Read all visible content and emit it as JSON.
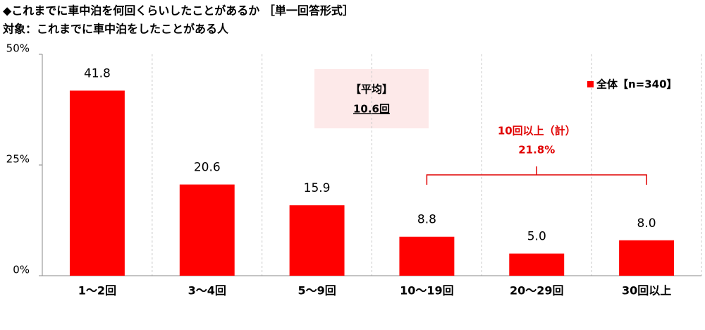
{
  "chart_data": {
    "type": "bar",
    "title": "◆これまでに車中泊を何回くらいしたことがあるか ［単一回答形式］",
    "subtitle": "対象：これまでに車中泊をしたことがある人",
    "categories": [
      "1～2回",
      "3～4回",
      "5～9回",
      "10～19回",
      "20～29回",
      "30回以上"
    ],
    "series": [
      {
        "name": "全体【n=340】",
        "color": "#ff0000",
        "values": [
          41.8,
          20.6,
          15.9,
          8.8,
          5.0,
          8.0
        ],
        "value_labels": [
          "41.8",
          "20.6",
          "15.9",
          "8.8",
          "5.0",
          "8.0"
        ]
      }
    ],
    "ylim": [
      0,
      50
    ],
    "yticks": [
      {
        "value": 0,
        "label": "0%"
      },
      {
        "value": 25,
        "label": "25%"
      },
      {
        "value": 50,
        "label": "50%"
      }
    ],
    "legend": "upper right",
    "annotations": {
      "average": [
        "【平均】",
        "10.6回"
      ],
      "bracket": [
        "10回以上（計）",
        "21.8%"
      ]
    }
  }
}
